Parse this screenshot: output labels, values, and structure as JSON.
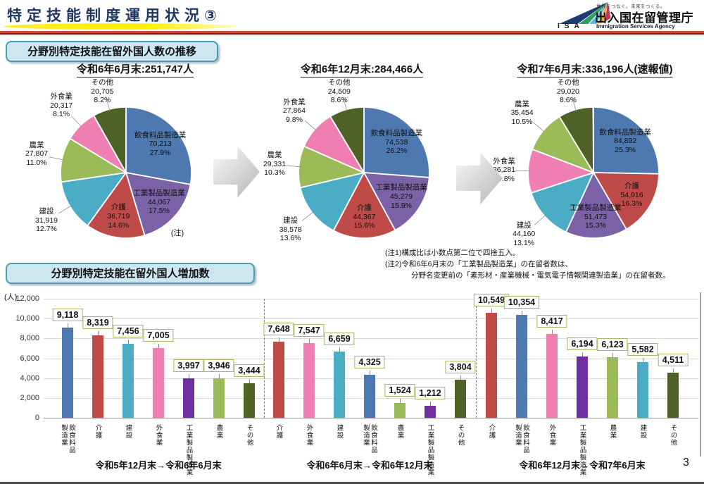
{
  "header": {
    "title": "特定技能制度運用状況③",
    "logo": {
      "acronym": "ISA",
      "tagline": "世界をつなぐ。未来をつくる。",
      "agency_jp": "出入国在留管理庁",
      "agency_en": "Immigration Services Agency"
    }
  },
  "sections": {
    "pies_heading": "分野別特定技能在留外国人数の推移",
    "bars_heading": "分野別特定技能在留外国人増加数"
  },
  "notes": [
    "(注1)構成比は小数点第二位で四捨五入。",
    "(注2)令和6年6月末の「工業製品製造業」の在留者数は、",
    "分野名変更前の「素形材・産業機械・電気電子情報関連製造業」の在留者数。"
  ],
  "page_number": "3",
  "colors": {
    "飲食料品製造業": "#4D79B0",
    "介護": "#BE4B48",
    "建設": "#4BACC6",
    "外食業": "#EF7FB2",
    "工業製品製造業_pie": "#7B62A6",
    "工業製品製造業_bar": "#7030A0",
    "農業": "#9BBB59",
    "その他": "#4E6228"
  },
  "chart_data": [
    {
      "type": "pie",
      "title": "令和6年6月末:251,747人",
      "annotation": {
        "text": "(注)",
        "x": 238,
        "y": 226
      },
      "slices": [
        {
          "name": "飲食料品製造業",
          "value": "70,213",
          "pct": 27.9,
          "pct_label": "27.9%",
          "color": "#4D79B0"
        },
        {
          "name": "工業製品製造業",
          "value": "44,067",
          "pct": 17.5,
          "pct_label": "17.5%",
          "color": "#7B62A6"
        },
        {
          "name": "介護",
          "value": "36,719",
          "pct": 14.6,
          "pct_label": "14.6%",
          "color": "#BE4B48"
        },
        {
          "name": "建設",
          "value": "31,919",
          "pct": 12.7,
          "pct_label": "12.7%",
          "color": "#4BACC6"
        },
        {
          "name": "農業",
          "value": "27,807",
          "pct": 11.0,
          "pct_label": "11.0%",
          "color": "#9BBB59"
        },
        {
          "name": "外食業",
          "value": "20,317",
          "pct": 8.1,
          "pct_label": "8.1%",
          "color": "#EF7FB2"
        },
        {
          "name": "その他",
          "value": "20,705",
          "pct": 8.2,
          "pct_label": "8.2%",
          "color": "#4E6228"
        }
      ]
    },
    {
      "type": "pie",
      "title": "令和6年12月末:284,466人",
      "slices": [
        {
          "name": "飲食料品製造業",
          "value": "74,538",
          "pct": 26.2,
          "pct_label": "26.2%",
          "color": "#4D79B0"
        },
        {
          "name": "工業製品製造業",
          "value": "45,279",
          "pct": 15.9,
          "pct_label": "15.9%",
          "color": "#7B62A6"
        },
        {
          "name": "介護",
          "value": "44,367",
          "pct": 15.6,
          "pct_label": "15.6%",
          "color": "#BE4B48"
        },
        {
          "name": "建設",
          "value": "38,578",
          "pct": 13.6,
          "pct_label": "13.6%",
          "color": "#4BACC6"
        },
        {
          "name": "農業",
          "value": "29,331",
          "pct": 10.3,
          "pct_label": "10.3%",
          "color": "#9BBB59"
        },
        {
          "name": "外食業",
          "value": "27,864",
          "pct": 9.8,
          "pct_label": "9.8%",
          "color": "#EF7FB2"
        },
        {
          "name": "その他",
          "value": "24,509",
          "pct": 8.6,
          "pct_label": "8.6%",
          "color": "#4E6228"
        }
      ]
    },
    {
      "type": "pie",
      "title": "令和7年6月末:336,196人(速報値)",
      "slices": [
        {
          "name": "飲食料品製造業",
          "value": "84,892",
          "pct": 25.3,
          "pct_label": "25.3%",
          "color": "#4D79B0"
        },
        {
          "name": "介護",
          "value": "54,916",
          "pct": 16.3,
          "pct_label": "16.3%",
          "color": "#BE4B48"
        },
        {
          "name": "工業製品製造業",
          "value": "51,473",
          "pct": 15.3,
          "pct_label": "15.3%",
          "color": "#7B62A6"
        },
        {
          "name": "建設",
          "value": "44,160",
          "pct": 13.1,
          "pct_label": "13.1%",
          "color": "#4BACC6"
        },
        {
          "name": "外食業",
          "value": "36,281",
          "pct": 10.8,
          "pct_label": "10.8%",
          "color": "#EF7FB2"
        },
        {
          "name": "農業",
          "value": "35,454",
          "pct": 10.5,
          "pct_label": "10.5%",
          "color": "#9BBB59"
        },
        {
          "name": "その他",
          "value": "29,020",
          "pct": 8.6,
          "pct_label": "8.6%",
          "color": "#4E6228"
        }
      ]
    },
    {
      "type": "bar",
      "unit_label": "(人)",
      "ylim": [
        0,
        12000
      ],
      "ytick_step": 2000,
      "yticks": [
        "0",
        "2,000",
        "4,000",
        "6,000",
        "8,000",
        "10,000",
        "12,000"
      ],
      "grid": true,
      "groups": [
        {
          "label": "令和5年12月末→令和6年6月末",
          "bars": [
            {
              "name": "飲食料品製造業",
              "tick": "飲食料品\n製造業",
              "value": 9118,
              "label": "9,118",
              "color": "#4D79B0"
            },
            {
              "name": "介護",
              "tick": "介護",
              "value": 8319,
              "label": "8,319",
              "color": "#BE4B48"
            },
            {
              "name": "建設",
              "tick": "建設",
              "value": 7456,
              "label": "7,456",
              "color": "#4BACC6"
            },
            {
              "name": "外食業",
              "tick": "外食業",
              "value": 7005,
              "label": "7,005",
              "color": "#EF7FB2"
            },
            {
              "name": "工業製品製造業",
              "tick": "工業製品製造業",
              "value": 3997,
              "label": "3,997",
              "color": "#7030A0"
            },
            {
              "name": "農業",
              "tick": "農業",
              "value": 3946,
              "label": "3,946",
              "color": "#9BBB59"
            },
            {
              "name": "その他",
              "tick": "その他",
              "value": 3444,
              "label": "3,444",
              "color": "#4E6228"
            }
          ]
        },
        {
          "label": "令和6年6月末→令和6年12月末",
          "bars": [
            {
              "name": "介護",
              "tick": "介護",
              "value": 7648,
              "label": "7,648",
              "color": "#BE4B48"
            },
            {
              "name": "外食業",
              "tick": "外食業",
              "value": 7547,
              "label": "7,547",
              "color": "#EF7FB2"
            },
            {
              "name": "建設",
              "tick": "建設",
              "value": 6659,
              "label": "6,659",
              "color": "#4BACC6"
            },
            {
              "name": "飲食料品製造業",
              "tick": "飲食料品\n製造業",
              "value": 4325,
              "label": "4,325",
              "color": "#4D79B0"
            },
            {
              "name": "農業",
              "tick": "農業",
              "value": 1524,
              "label": "1,524",
              "color": "#9BBB59"
            },
            {
              "name": "工業製品製造業",
              "tick": "工業製品製造業",
              "value": 1212,
              "label": "1,212",
              "color": "#7030A0"
            },
            {
              "name": "その他",
              "tick": "その他",
              "value": 3804,
              "label": "3,804",
              "color": "#4E6228"
            }
          ]
        },
        {
          "label": "令和6年12月末→令和7年6月末",
          "bars": [
            {
              "name": "介護",
              "tick": "介護",
              "value": 10549,
              "label": "10,549",
              "color": "#BE4B48"
            },
            {
              "name": "飲食料品製造業",
              "tick": "飲食料品\n製造業",
              "value": 10354,
              "label": "10,354",
              "color": "#4D79B0"
            },
            {
              "name": "外食業",
              "tick": "外食業",
              "value": 8417,
              "label": "8,417",
              "color": "#EF7FB2"
            },
            {
              "name": "工業製品製造業",
              "tick": "工業製品製造業",
              "value": 6194,
              "label": "6,194",
              "color": "#7030A0"
            },
            {
              "name": "農業",
              "tick": "農業",
              "value": 6123,
              "label": "6,123",
              "color": "#9BBB59"
            },
            {
              "name": "建設",
              "tick": "建設",
              "value": 5582,
              "label": "5,582",
              "color": "#4BACC6"
            },
            {
              "name": "その他",
              "tick": "その他",
              "value": 4511,
              "label": "4,511",
              "color": "#4E6228"
            }
          ]
        }
      ]
    }
  ]
}
